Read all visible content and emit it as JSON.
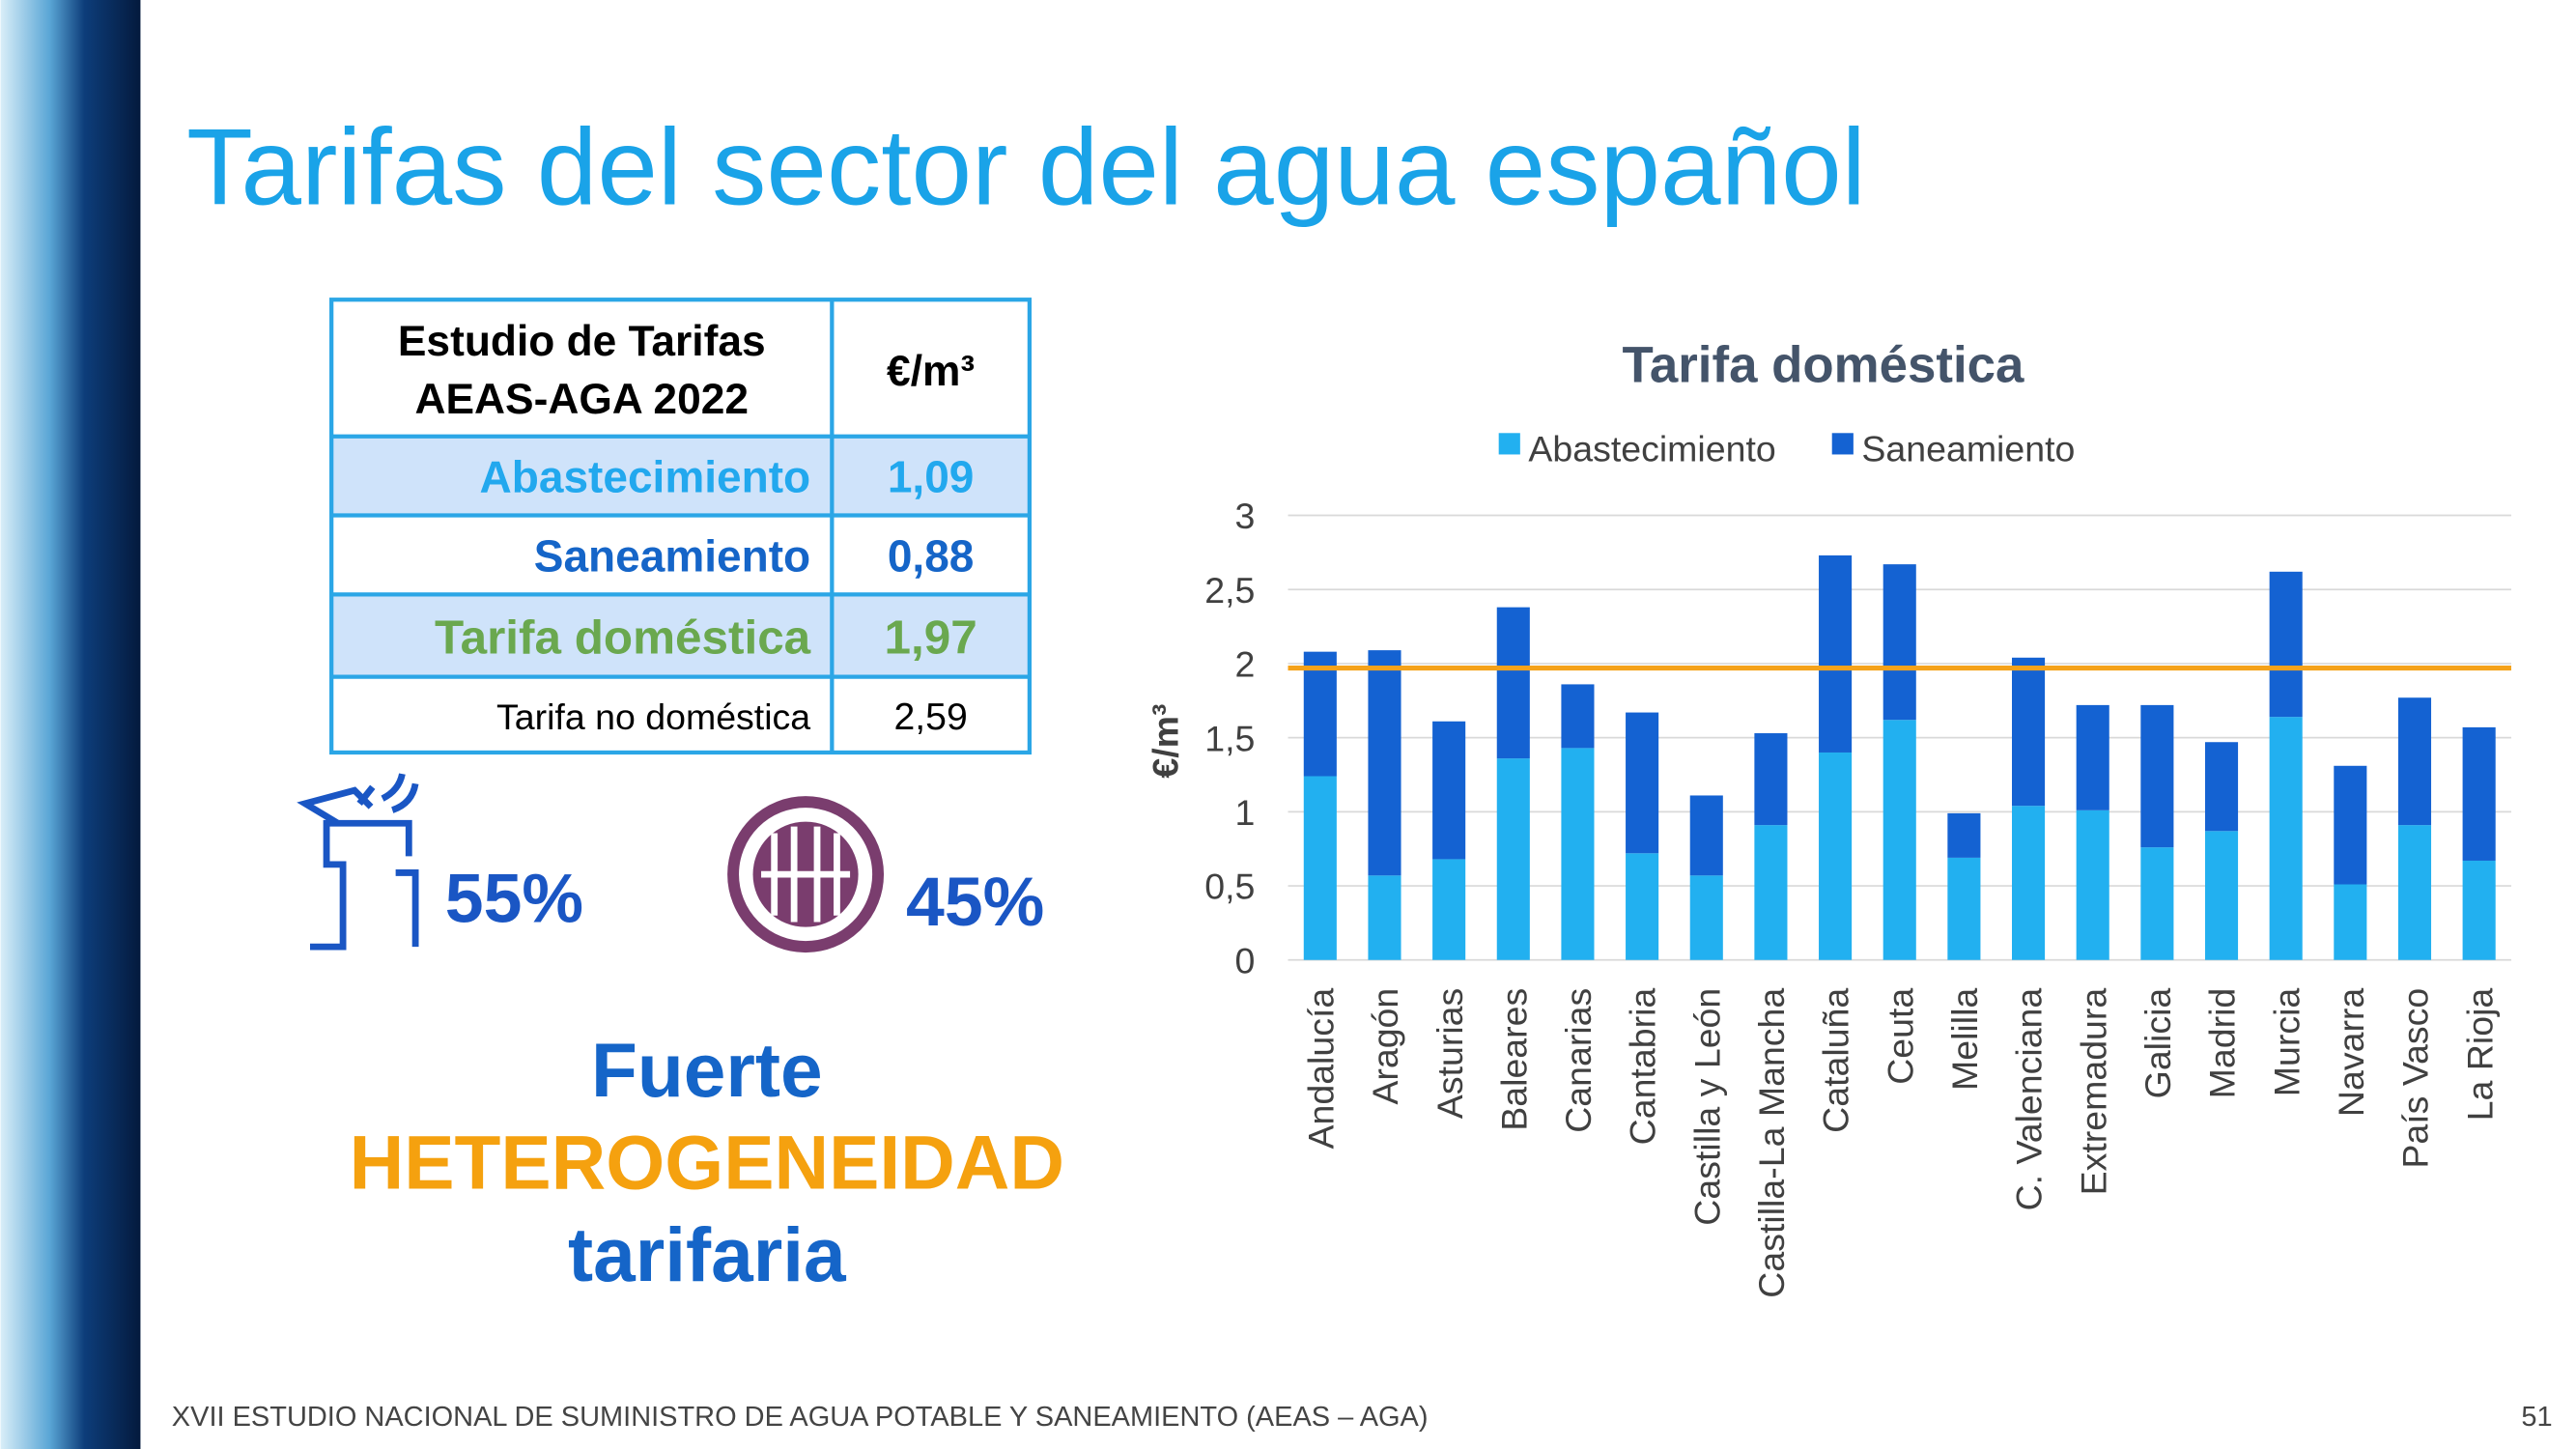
{
  "title": "Tarifas del sector del agua español",
  "table": {
    "header": [
      "Estudio de Tarifas",
      "AEAS-AGA 2022"
    ],
    "unit_header": "€/m³",
    "rows": [
      [
        "Abastecimiento",
        "1,09"
      ],
      [
        "Saneamiento",
        "0,88"
      ],
      [
        "Tarifa doméstica",
        "1,97"
      ],
      [
        "Tarifa no doméstica",
        "2,59"
      ]
    ]
  },
  "shares": [
    "55%",
    "45%"
  ],
  "callout": [
    "Fuerte",
    "HETEROGENEIDAD",
    "tarifaria"
  ],
  "footer": "XVII ESTUDIO NACIONAL DE SUMINISTRO DE AGUA POTABLE Y SANEAMIENTO (AEAS – AGA)",
  "page_number": "51",
  "chart_data": {
    "type": "stacked_bar",
    "title": "Tarifa doméstica",
    "y_label": "€/m³",
    "categories": [
      "Andalucía",
      "Aragón",
      "Asturias",
      "Baleares",
      "Canarias",
      "Cantabria",
      "Castilla y León",
      "Castilla-La Mancha",
      "Cataluña",
      "Ceuta",
      "Melilla",
      "C. Valenciana",
      "Extremadura",
      "Galicia",
      "Madrid",
      "Murcia",
      "Navarra",
      "País Vasco",
      "La Rioja"
    ],
    "series": [
      {
        "name": "Abastecimiento",
        "color": "#22b0f0",
        "values": [
          1.24,
          0.57,
          0.68,
          1.36,
          1.43,
          0.72,
          0.57,
          0.91,
          1.4,
          1.62,
          0.69,
          1.04,
          1.01,
          0.76,
          0.87,
          1.64,
          0.51,
          0.91,
          0.67
        ]
      },
      {
        "name": "Saneamiento",
        "color": "#1462d2",
        "values": [
          0.84,
          1.52,
          0.93,
          1.02,
          0.43,
          0.95,
          0.54,
          0.62,
          1.33,
          1.05,
          0.3,
          1.0,
          0.71,
          0.96,
          0.6,
          0.98,
          0.8,
          0.86,
          0.9
        ]
      }
    ],
    "reference_line": 1.97,
    "reference_color": "#f5a21a",
    "ylim": [
      0,
      3
    ],
    "yticks": [
      0,
      {
        "value": 0.5,
        "label": "0,5"
      },
      1,
      {
        "value": 1.5,
        "label": "1,5"
      },
      2,
      {
        "value": 2.5,
        "label": "2,5"
      },
      3
    ],
    "grid": true,
    "legend": "top"
  }
}
